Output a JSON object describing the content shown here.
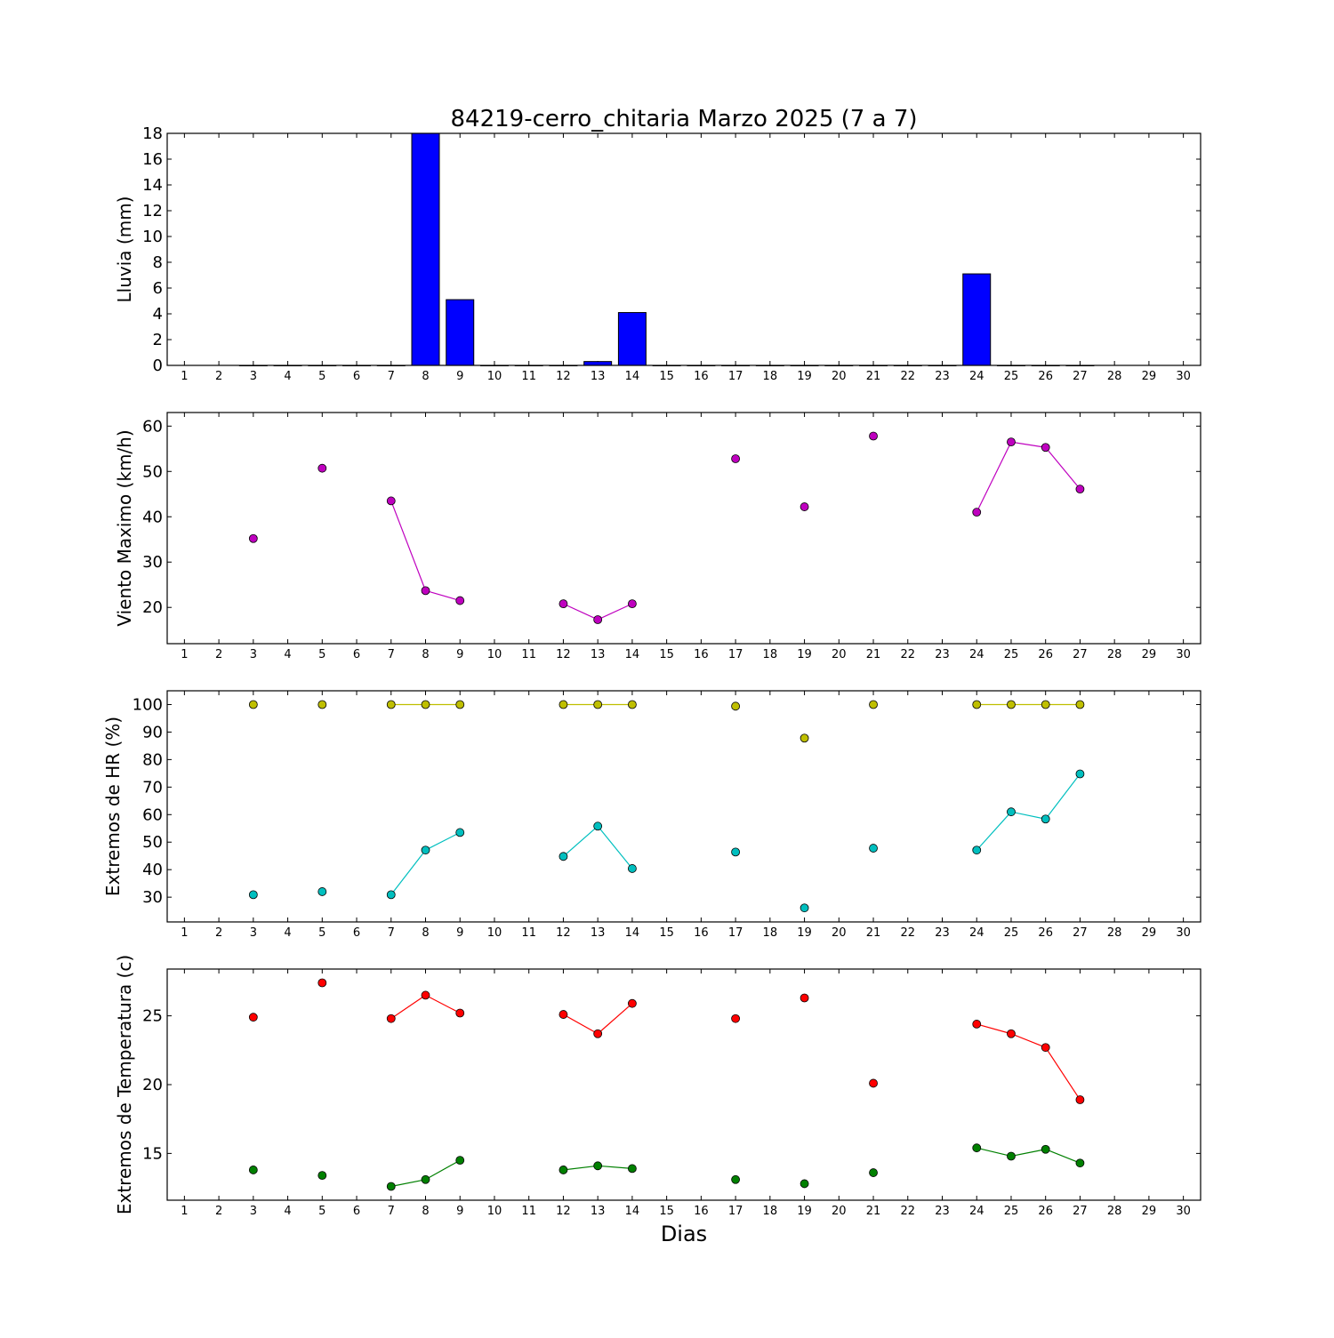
{
  "chart_data": {
    "title": "84219-cerro_chitaria Marzo 2025  (7 a 7)",
    "xlabel": "Dias",
    "days": [
      1,
      2,
      3,
      4,
      5,
      6,
      7,
      8,
      9,
      10,
      11,
      12,
      13,
      14,
      15,
      16,
      17,
      18,
      19,
      20,
      21,
      22,
      23,
      24,
      25,
      26,
      27,
      28,
      29,
      30
    ],
    "xlim": [
      0.5,
      30.5
    ],
    "panels": [
      {
        "id": "lluvia",
        "type": "bar",
        "ylabel": "Lluvia (mm)",
        "ylim": [
          0,
          18
        ],
        "yticks": [
          0,
          2,
          4,
          6,
          8,
          10,
          12,
          14,
          16,
          18
        ],
        "color": "#0000ff",
        "series": [
          {
            "x": [
              3,
              4,
              5,
              6,
              7,
              8,
              9,
              10,
              11,
              12,
              13,
              14,
              15,
              16,
              17,
              18,
              19,
              20,
              21,
              22,
              23,
              24,
              25,
              26,
              27
            ],
            "values": [
              0,
              0,
              0,
              0,
              0,
              18,
              5.1,
              0,
              0,
              0,
              0.3,
              4.1,
              0,
              0,
              0,
              0,
              0,
              0,
              0,
              0,
              0,
              7.1,
              0,
              0,
              0
            ]
          }
        ]
      },
      {
        "id": "viento",
        "type": "line",
        "ylabel": "Viento Maximo (km/h)",
        "ylim": [
          12,
          63
        ],
        "yticks": [
          20,
          30,
          40,
          50,
          60
        ],
        "series": [
          {
            "color": "#bf00bf",
            "x": [
              3,
              4,
              5,
              6,
              7,
              8,
              9,
              10,
              11,
              12,
              13,
              14,
              15,
              16,
              17,
              18,
              19,
              20,
              21,
              22,
              23,
              24,
              25,
              26,
              27
            ],
            "values": [
              35.2,
              null,
              50.7,
              null,
              43.5,
              23.7,
              21.5,
              null,
              null,
              20.8,
              17.3,
              20.8,
              null,
              null,
              52.8,
              null,
              42.2,
              null,
              57.8,
              null,
              null,
              41.0,
              56.5,
              55.3,
              46.1
            ]
          }
        ]
      },
      {
        "id": "hr",
        "type": "line",
        "ylabel": "Extremos de HR (%)",
        "ylim": [
          21,
          105
        ],
        "yticks": [
          30,
          40,
          50,
          60,
          70,
          80,
          90,
          100
        ],
        "series": [
          {
            "color": "#bfbf00",
            "x": [
              3,
              4,
              5,
              6,
              7,
              8,
              9,
              10,
              11,
              12,
              13,
              14,
              15,
              16,
              17,
              18,
              19,
              20,
              21,
              22,
              23,
              24,
              25,
              26,
              27
            ],
            "values": [
              100,
              null,
              100,
              null,
              100,
              100,
              100,
              null,
              null,
              100,
              100,
              100,
              null,
              null,
              99.4,
              null,
              87.8,
              null,
              100,
              null,
              null,
              100,
              100,
              100,
              100
            ]
          },
          {
            "color": "#00bfbf",
            "x": [
              3,
              4,
              5,
              6,
              7,
              8,
              9,
              10,
              11,
              12,
              13,
              14,
              15,
              16,
              17,
              18,
              19,
              20,
              21,
              22,
              23,
              24,
              25,
              26,
              27
            ],
            "values": [
              30.9,
              null,
              32.0,
              null,
              30.9,
              47.1,
              53.5,
              null,
              null,
              44.8,
              55.8,
              40.4,
              null,
              null,
              46.4,
              null,
              26.1,
              null,
              47.8,
              null,
              null,
              47.1,
              61.0,
              58.4,
              74.8
            ]
          }
        ]
      },
      {
        "id": "temp",
        "type": "line",
        "ylabel": "Extremos de Temperatura (c)",
        "ylim": [
          11.6,
          28.4
        ],
        "yticks": [
          15,
          20,
          25
        ],
        "series": [
          {
            "color": "#ff0000",
            "x": [
              3,
              4,
              5,
              6,
              7,
              8,
              9,
              10,
              11,
              12,
              13,
              14,
              15,
              16,
              17,
              18,
              19,
              20,
              21,
              22,
              23,
              24,
              25,
              26,
              27
            ],
            "values": [
              24.9,
              null,
              27.4,
              null,
              24.8,
              26.5,
              25.2,
              null,
              null,
              25.1,
              23.7,
              25.9,
              null,
              null,
              24.8,
              null,
              26.3,
              null,
              20.1,
              null,
              null,
              24.4,
              23.7,
              22.7,
              18.9
            ]
          },
          {
            "color": "#008000",
            "x": [
              3,
              4,
              5,
              6,
              7,
              8,
              9,
              10,
              11,
              12,
              13,
              14,
              15,
              16,
              17,
              18,
              19,
              20,
              21,
              22,
              23,
              24,
              25,
              26,
              27
            ],
            "values": [
              13.8,
              null,
              13.4,
              null,
              12.6,
              13.1,
              14.5,
              null,
              null,
              13.8,
              14.1,
              13.9,
              null,
              null,
              13.1,
              null,
              12.8,
              null,
              13.6,
              null,
              null,
              15.4,
              14.8,
              15.3,
              14.3
            ]
          }
        ]
      }
    ]
  }
}
